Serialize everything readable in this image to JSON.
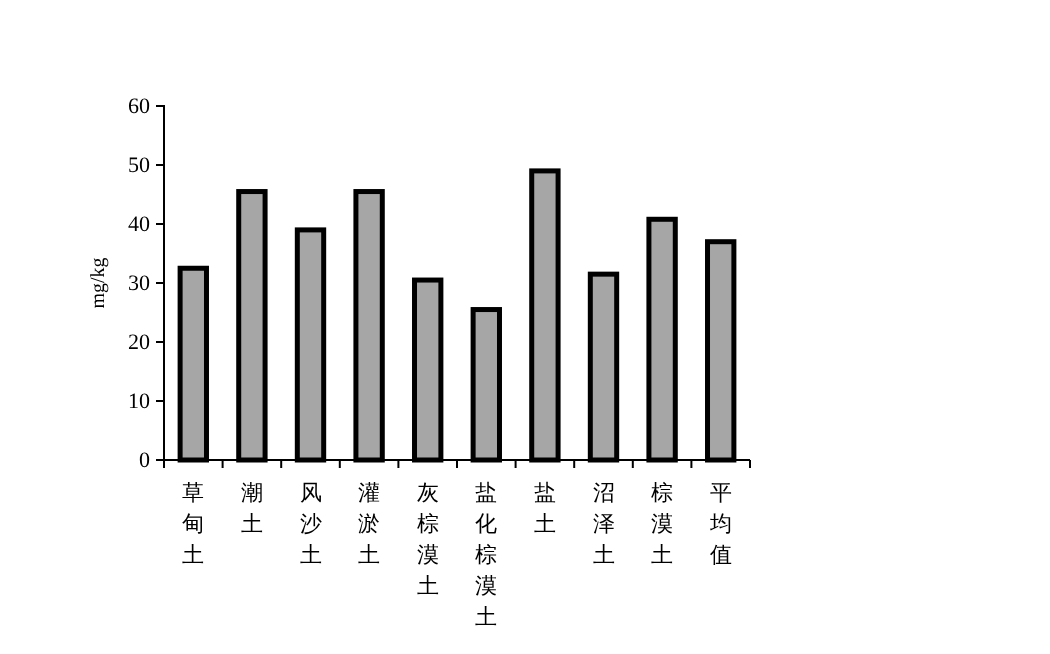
{
  "chart_data": {
    "type": "bar",
    "ylabel": "mg/kg",
    "categories": [
      "草甸土",
      "潮土",
      "风沙土",
      "灌淤土",
      "灰棕漠土",
      "盐化棕漠土",
      "盐土",
      "沼泽土",
      "棕漠土",
      "平均值"
    ],
    "values": [
      32.5,
      45.5,
      39,
      45.5,
      30.5,
      25.5,
      49,
      31.5,
      40.8,
      37
    ],
    "color": "#a6a6a6",
    "ylim": [
      0,
      60
    ],
    "yticks": [
      0,
      10,
      20,
      30,
      40,
      50,
      60
    ],
    "grid": false
  }
}
